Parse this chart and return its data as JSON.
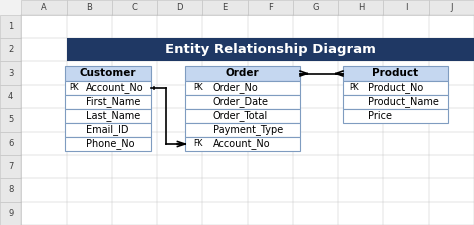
{
  "title": "Entity Relationship Diagram",
  "title_bg": "#1F3864",
  "title_color": "#FFFFFF",
  "title_fontsize": 9.5,
  "bg_color": "#F2F2F2",
  "spreadsheet_bg": "#FFFFFF",
  "col_header_bg": "#E8E8E8",
  "row_header_bg": "#E8E8E8",
  "grid_color": "#BFBFBF",
  "table_header_bg": "#C5D7F0",
  "table_border": "#7F9CC0",
  "table_row_bg": "#FFFFFF",
  "cell_text_color": "#000000",
  "col_labels": [
    "A",
    "B",
    "C",
    "D",
    "E",
    "F",
    "G",
    "H",
    "I",
    "J"
  ],
  "row_labels": [
    "1",
    "2",
    "3",
    "4",
    "5",
    "6",
    "7",
    "8",
    "9"
  ],
  "tables": [
    {
      "name": "Customer",
      "col": 1,
      "row": 3,
      "col_span": 3,
      "row_span": 7,
      "fields": [
        {
          "key": "PK",
          "name": "Account_No"
        },
        {
          "key": "",
          "name": "First_Name"
        },
        {
          "key": "",
          "name": "Last_Name"
        },
        {
          "key": "",
          "name": "Email_ID"
        },
        {
          "key": "",
          "name": "Phone_No"
        }
      ]
    },
    {
      "name": "Order",
      "col": 4,
      "row": 3,
      "col_span": 4,
      "row_span": 7,
      "fields": [
        {
          "key": "PK",
          "name": "Order_No"
        },
        {
          "key": "",
          "name": "Order_Date"
        },
        {
          "key": "",
          "name": "Order_Total"
        },
        {
          "key": "",
          "name": "Payment_Type"
        },
        {
          "key": "FK",
          "name": "Account_No"
        }
      ]
    },
    {
      "name": "Product",
      "col": 8,
      "row": 3,
      "col_span": 3,
      "row_span": 5,
      "fields": [
        {
          "key": "PK",
          "name": "Product_No"
        },
        {
          "key": "",
          "name": "Product_Name"
        },
        {
          "key": "",
          "name": "Price"
        }
      ]
    }
  ],
  "font_size": 7.0
}
